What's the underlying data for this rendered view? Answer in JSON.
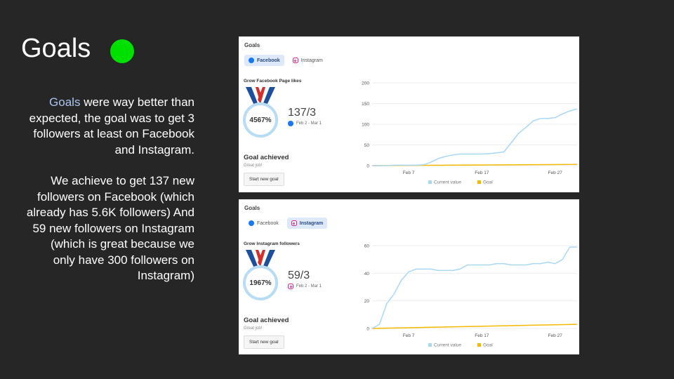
{
  "slide": {
    "title": "Goals",
    "status_color": "#00e000",
    "desc_highlight": "Goals",
    "desc_p1_rest": " were way better than expected, the goal was to get 3 followers at least on Facebook and Instagram.",
    "desc_p2": "We achieve to get 137 new followers on Facebook (which already has 5.6K followers) And 59 new followers on Instagram (which is great because we only have 300 followers on Instagram)"
  },
  "facebook_panel": {
    "title": "Goals",
    "tabs": [
      {
        "label": "Facebook",
        "active": true
      },
      {
        "label": "Instagram",
        "active": false
      }
    ],
    "goal_name": "Grow Facebook Page likes",
    "percent": "4567%",
    "ratio": "137/3",
    "date_range": "Feb 2 - Mar 1",
    "achieved": "Goal achieved",
    "great": "Great job!",
    "button": "Start new goal"
  },
  "instagram_panel": {
    "title": "Goals",
    "tabs": [
      {
        "label": "Facebook",
        "active": false
      },
      {
        "label": "Instagram",
        "active": true
      }
    ],
    "goal_name": "Grow Instagram followers",
    "percent": "1967%",
    "ratio": "59/3",
    "date_range": "Feb 2 - Mar 1",
    "achieved": "Goal achieved",
    "great": "Great job!",
    "button": "Start new goal"
  },
  "chart_data": [
    {
      "type": "line",
      "ylim": [
        0,
        200
      ],
      "yticks": [
        0,
        50,
        100,
        150,
        200
      ],
      "xticks": [
        {
          "label": "Feb 7",
          "day": 7
        },
        {
          "label": "Feb 17",
          "day": 17
        },
        {
          "label": "Feb 27",
          "day": 27
        }
      ],
      "xlim": [
        2,
        30
      ],
      "series": [
        {
          "name": "Current value",
          "color": "#a9d8f5",
          "x": [
            2,
            3,
            4,
            5,
            6,
            7,
            8,
            9,
            10,
            11,
            12,
            13,
            14,
            15,
            16,
            17,
            18,
            19,
            20,
            21,
            22,
            23,
            24,
            25,
            26,
            27,
            28,
            29,
            30
          ],
          "y": [
            0,
            0,
            0,
            1,
            1,
            1,
            1,
            2,
            8,
            17,
            22,
            26,
            28,
            28,
            28,
            28,
            29,
            31,
            33,
            55,
            78,
            92,
            108,
            114,
            114,
            116,
            125,
            132,
            137
          ]
        },
        {
          "name": "Goal",
          "color": "#f5b800",
          "x": [
            2,
            30
          ],
          "y": [
            0,
            3
          ]
        }
      ]
    },
    {
      "type": "line",
      "ylim": [
        0,
        60
      ],
      "yticks": [
        0,
        20,
        40,
        60
      ],
      "xticks": [
        {
          "label": "Feb 7",
          "day": 7
        },
        {
          "label": "Feb 17",
          "day": 17
        },
        {
          "label": "Feb 27",
          "day": 27
        }
      ],
      "xlim": [
        2,
        30
      ],
      "series": [
        {
          "name": "Current value",
          "color": "#a9d8f5",
          "x": [
            2,
            3,
            4,
            5,
            6,
            7,
            8,
            9,
            10,
            11,
            12,
            13,
            14,
            15,
            16,
            17,
            18,
            19,
            20,
            21,
            22,
            23,
            24,
            25,
            26,
            27,
            28,
            29,
            30
          ],
          "y": [
            0,
            3,
            18,
            25,
            35,
            41,
            43,
            43,
            43,
            42,
            42,
            42,
            43,
            46,
            46,
            46,
            46,
            47,
            47,
            46,
            46,
            46,
            47,
            47,
            48,
            47,
            50,
            59,
            59
          ]
        },
        {
          "name": "Goal",
          "color": "#f5b800",
          "x": [
            2,
            30
          ],
          "y": [
            0,
            3
          ]
        }
      ]
    }
  ]
}
